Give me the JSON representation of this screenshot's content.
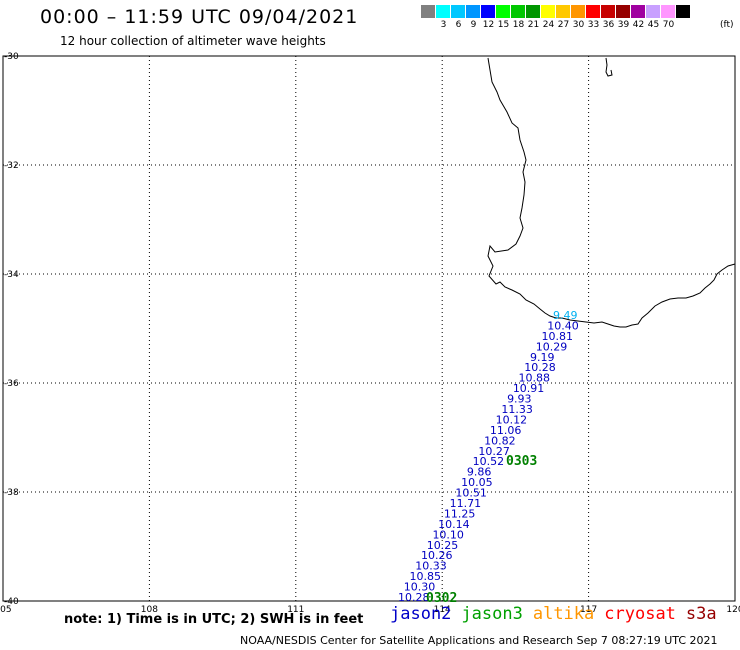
{
  "header": {
    "title": "00:00 – 11:59 UTC 09/04/2021",
    "subtitle": "12 hour collection of altimeter wave heights"
  },
  "color_scale": {
    "items": [
      {
        "label": "",
        "color": "#808080"
      },
      {
        "label": "3",
        "color": "#00ffff"
      },
      {
        "label": "6",
        "color": "#00c8ff"
      },
      {
        "label": "9",
        "color": "#0096ff"
      },
      {
        "label": "12",
        "color": "#0000ff"
      },
      {
        "label": "15",
        "color": "#00ff00"
      },
      {
        "label": "18",
        "color": "#00c800"
      },
      {
        "label": "21",
        "color": "#009600"
      },
      {
        "label": "24",
        "color": "#ffff00"
      },
      {
        "label": "27",
        "color": "#ffc800"
      },
      {
        "label": "30",
        "color": "#ff9600"
      },
      {
        "label": "33",
        "color": "#ff0000"
      },
      {
        "label": "36",
        "color": "#c80000"
      },
      {
        "label": "39",
        "color": "#960000"
      },
      {
        "label": "42",
        "color": "#a000a0"
      },
      {
        "label": "45",
        "color": "#c8a0ff"
      },
      {
        "label": "70",
        "color": "#ff96ff"
      },
      {
        "label": "",
        "color": "#000000"
      }
    ],
    "unit": "(ft)"
  },
  "map": {
    "lat_labels": [
      "-30",
      "-32",
      "-34",
      "-36",
      "-38",
      "-40"
    ],
    "lon_labels": [
      "105",
      "108",
      "111",
      "114",
      "117",
      "120"
    ],
    "lat_range": [
      -40,
      -30
    ],
    "lon_range": [
      105,
      120
    ],
    "track_time_labels": [
      {
        "text": "0303",
        "color": "#008000"
      },
      {
        "text": "0302",
        "color": "#008000"
      }
    ],
    "wave_heights": [
      {
        "value": "9.49",
        "color": "#00b0f0"
      },
      {
        "value": "10.40",
        "color": "#0000c0"
      },
      {
        "value": "10.81",
        "color": "#0000c0"
      },
      {
        "value": "10.29",
        "color": "#0000c0"
      },
      {
        "value": "9.19",
        "color": "#0000c0"
      },
      {
        "value": "10.28",
        "color": "#0000c0"
      },
      {
        "value": "10.88",
        "color": "#0000c0"
      },
      {
        "value": "10.91",
        "color": "#0000c0"
      },
      {
        "value": "9.93",
        "color": "#0000c0"
      },
      {
        "value": "11.33",
        "color": "#0000c0"
      },
      {
        "value": "10.12",
        "color": "#0000c0"
      },
      {
        "value": "11.06",
        "color": "#0000c0"
      },
      {
        "value": "10.82",
        "color": "#0000c0"
      },
      {
        "value": "10.27",
        "color": "#0000c0"
      },
      {
        "value": "10.52",
        "color": "#0000c0"
      },
      {
        "value": "9.86",
        "color": "#0000c0"
      },
      {
        "value": "10.05",
        "color": "#0000c0"
      },
      {
        "value": "10.51",
        "color": "#0000c0"
      },
      {
        "value": "11.71",
        "color": "#0000c0"
      },
      {
        "value": "11.25",
        "color": "#0000c0"
      },
      {
        "value": "10.14",
        "color": "#0000c0"
      },
      {
        "value": "10.10",
        "color": "#0000c0"
      },
      {
        "value": "10.25",
        "color": "#0000c0"
      },
      {
        "value": "10.26",
        "color": "#0000c0"
      },
      {
        "value": "10.33",
        "color": "#0000c0"
      },
      {
        "value": "10.85",
        "color": "#0000c0"
      },
      {
        "value": "10.30",
        "color": "#0000c0"
      },
      {
        "value": "10.28",
        "color": "#0000c0"
      }
    ]
  },
  "footer": {
    "note": "note: 1) Time is in UTC; 2) SWH is in feet",
    "credit": "NOAA/NESDIS Center for Satellite Applications and Research   Sep  7 08:27:19 UTC 2021",
    "satellites": [
      {
        "name": "jason2",
        "color": "#0000c8"
      },
      {
        "name": "jason3",
        "color": "#00a000"
      },
      {
        "name": "altika",
        "color": "#ff9600"
      },
      {
        "name": "cryosat",
        "color": "#ff0000"
      },
      {
        "name": "s3a",
        "color": "#960000"
      }
    ]
  }
}
